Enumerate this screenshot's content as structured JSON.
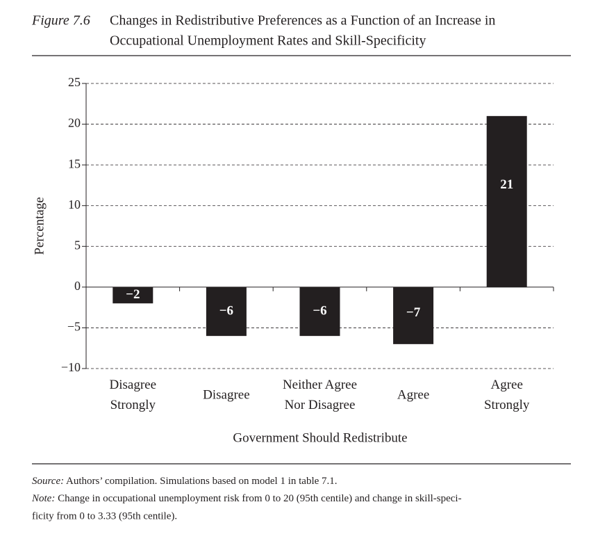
{
  "chart_data": {
    "type": "bar",
    "figure_label": "Figure 7.6",
    "title_lines": [
      "Changes in Redistributive Preferences as a Function of an Increase in",
      "Occupational Unemployment Rates and Skill-Specificity"
    ],
    "categories": [
      [
        "Disagree",
        "Strongly"
      ],
      [
        "Disagree"
      ],
      [
        "Neither Agree",
        "Nor Disagree"
      ],
      [
        "Agree"
      ],
      [
        "Agree",
        "Strongly"
      ]
    ],
    "values": [
      -2,
      -6,
      -6,
      -7,
      21
    ],
    "value_labels": [
      "−2",
      "−6",
      "−6",
      "−7",
      "21"
    ],
    "color": "#231f20",
    "ylim": [
      -10,
      25
    ],
    "yticks": [
      {
        "value": -10,
        "label": "−10"
      },
      {
        "value": -5,
        "label": "−5"
      },
      0,
      5,
      10,
      15,
      20,
      25
    ],
    "grid": true,
    "xlabel": "Government Should Redistribute",
    "ylabel": "Percentage",
    "source": {
      "label": "Source:",
      "text": "Authors’ compilation. Simulations based on model 1 in table 7.1."
    },
    "note": {
      "label": "Note:",
      "lines": [
        "Change in occupational unemployment risk from 0 to 20 (95th centile) and change in skill-speci-",
        "ficity from 0 to 3.33 (95th centile)."
      ]
    }
  }
}
